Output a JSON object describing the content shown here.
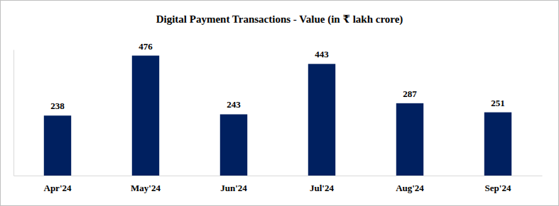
{
  "chart_data": {
    "type": "bar",
    "title": "Digital Payment Transactions - Value (in ₹ lakh crore)",
    "categories": [
      "Apr'24",
      "May'24",
      "Jun'24",
      "Jul'24",
      "Aug'24",
      "Sep'24"
    ],
    "values": [
      238,
      476,
      243,
      443,
      287,
      251
    ],
    "color": "#002060",
    "ylim": [
      0,
      500
    ],
    "grid": false,
    "data_labels": true,
    "tick_labels": "x"
  }
}
